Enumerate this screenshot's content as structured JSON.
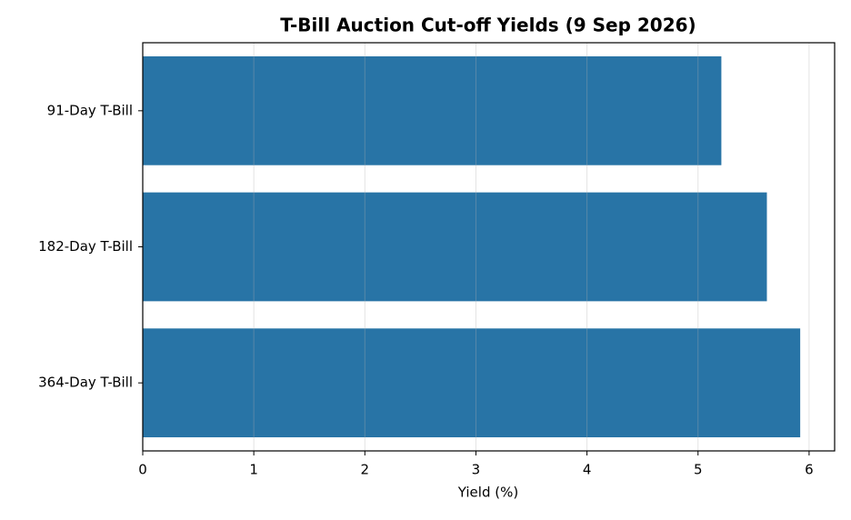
{
  "chart_data": {
    "type": "barh",
    "title": "T-Bill Auction Cut-off Yields (9 Sep 2026)",
    "x_label": "Yield (%)",
    "categories": [
      "91-Day T-Bill",
      "182-Day T-Bill",
      "364-Day T-Bill"
    ],
    "values": [
      5.21,
      5.62,
      5.92
    ],
    "color": "#2874a6",
    "xlim": [
      0,
      6.23
    ],
    "xticks": [
      0,
      1,
      2,
      3,
      4,
      5,
      6
    ],
    "grid": true
  }
}
